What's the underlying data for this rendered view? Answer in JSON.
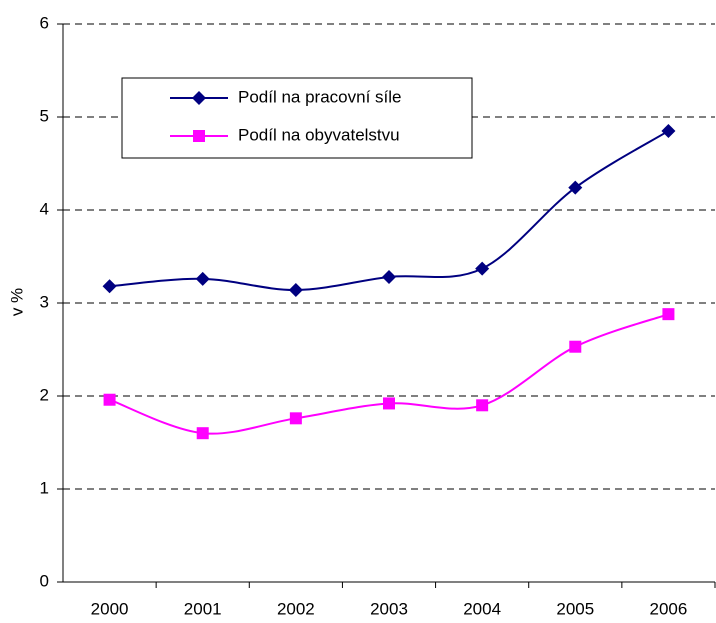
{
  "chart_data": {
    "type": "line",
    "y_axis_label": "v %",
    "categories": [
      "2000",
      "2001",
      "2002",
      "2003",
      "2004",
      "2005",
      "2006"
    ],
    "series": [
      {
        "name": "Podíl na pracovní síle",
        "color": "#000080",
        "marker": "diamond",
        "values": [
          3.18,
          3.26,
          3.14,
          3.28,
          3.37,
          4.24,
          4.85
        ]
      },
      {
        "name": "Podíl na obyvatelstvu",
        "color": "#ff00ff",
        "marker": "square",
        "values": [
          1.96,
          1.6,
          1.76,
          1.92,
          1.9,
          2.53,
          2.88
        ]
      }
    ],
    "ylim": [
      0,
      6
    ],
    "yticks": [
      0,
      1,
      2,
      3,
      4,
      5,
      6
    ],
    "grid": true,
    "smooth": true,
    "legend": "top-left"
  }
}
